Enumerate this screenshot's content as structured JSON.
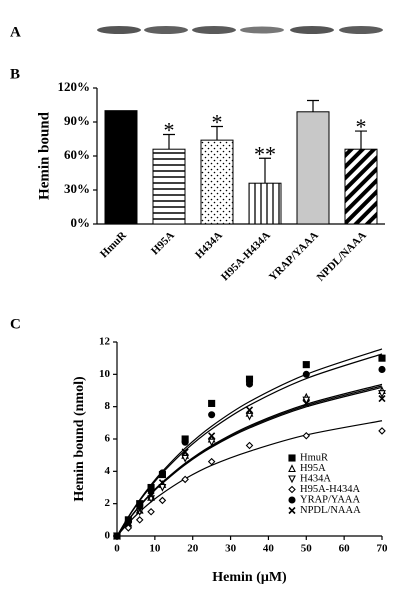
{
  "panel_labels": [
    "A",
    "B",
    "C"
  ],
  "chart_data": [
    {
      "type": "bar",
      "ylabel": "Hemin bound",
      "categories": [
        "HmuR",
        "H95A",
        "H434A",
        "H95A-H434A",
        "YRAP/YAAA",
        "NPDL/NAAA"
      ],
      "values": [
        100,
        66,
        74,
        36,
        99,
        66
      ],
      "errors": [
        null,
        13,
        12,
        22,
        10,
        16
      ],
      "annotations": [
        null,
        "*",
        "*",
        "**",
        null,
        "*"
      ],
      "colors": [
        "#000000",
        "#ffffff",
        "#ffffff",
        "#ffffff",
        "#c8c8c8",
        "#ffffff"
      ],
      "patterns": [
        "solid",
        "hlines",
        "dots",
        "vlines",
        "solid",
        "diagonal"
      ],
      "ylim": [
        0,
        120
      ],
      "yticks": [
        {
          "value": 0,
          "label": "0%"
        },
        {
          "value": 30,
          "label": "30%"
        },
        {
          "value": 60,
          "label": "60%"
        },
        {
          "value": 90,
          "label": "90%"
        },
        {
          "value": 120,
          "label": "120%"
        }
      ]
    },
    {
      "type": "scatter",
      "xlabel": "Hemin (μM)",
      "ylabel": "Hemin bound (nmol)",
      "x": [
        0,
        3,
        6,
        9,
        12,
        18,
        25,
        35,
        50,
        70
      ],
      "series": [
        {
          "name": "HmuR",
          "marker": "square",
          "filled": true,
          "values": [
            0,
            1.0,
            2.0,
            3.0,
            3.8,
            6.0,
            8.2,
            9.7,
            10.6,
            11.0
          ],
          "fit": [
            0,
            1.19,
            2.24,
            3.17,
            4.0,
            5.43,
            6.79,
            8.31,
            10.0,
            11.57
          ]
        },
        {
          "name": "H95A",
          "marker": "triangle-up",
          "filled": false,
          "values": [
            0,
            0.8,
            1.6,
            2.4,
            3.2,
            5.0,
            6.0,
            7.6,
            8.6,
            9.0
          ],
          "fit": [
            0,
            1.0,
            1.88,
            2.65,
            3.33,
            4.5,
            5.6,
            6.82,
            8.15,
            9.38
          ]
        },
        {
          "name": "H434A",
          "marker": "triangle-down",
          "filled": false,
          "values": [
            0,
            0.7,
            1.5,
            2.3,
            3.0,
            4.8,
            5.8,
            7.4,
            8.4,
            8.8
          ],
          "fit": [
            0,
            0.98,
            1.84,
            2.6,
            3.26,
            4.41,
            5.49,
            6.68,
            7.99,
            9.19
          ]
        },
        {
          "name": "H95A-H434A",
          "marker": "diamond",
          "filled": false,
          "values": [
            0,
            0.5,
            1.0,
            1.5,
            2.2,
            3.5,
            4.6,
            5.6,
            6.2,
            6.5
          ],
          "fit": [
            0,
            0.8,
            1.5,
            2.11,
            2.64,
            3.54,
            4.37,
            5.24,
            6.25,
            7.13
          ]
        },
        {
          "name": "YRAP/YAAA",
          "marker": "circle",
          "filled": true,
          "values": [
            0,
            0.9,
            1.9,
            2.8,
            3.9,
            5.8,
            7.5,
            9.4,
            10.0,
            10.3
          ],
          "fit": [
            0,
            1.16,
            2.18,
            3.08,
            3.9,
            5.29,
            6.61,
            8.09,
            9.74,
            11.26
          ]
        },
        {
          "name": "NPDL/NAAA",
          "marker": "x",
          "filled": true,
          "values": [
            0,
            0.8,
            1.6,
            2.5,
            3.3,
            5.2,
            6.2,
            7.8,
            8.2,
            8.5
          ],
          "fit": [
            0,
            0.99,
            1.86,
            2.62,
            3.3,
            4.46,
            5.54,
            6.75,
            8.07,
            9.28
          ]
        }
      ],
      "xlim": [
        0,
        70
      ],
      "xticks": [
        0,
        10,
        20,
        30,
        40,
        50,
        60,
        70
      ],
      "ylim": [
        0,
        12
      ],
      "yticks": [
        0,
        2,
        4,
        6,
        8,
        10,
        12
      ]
    }
  ]
}
